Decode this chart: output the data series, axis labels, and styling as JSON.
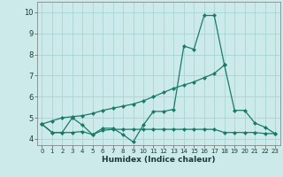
{
  "xlabel": "Humidex (Indice chaleur)",
  "bg_color": "#cceaea",
  "grid_color": "#aad4d4",
  "line_color": "#1a7a6a",
  "xlim": [
    -0.5,
    23.5
  ],
  "ylim": [
    3.7,
    10.5
  ],
  "xticks": [
    0,
    1,
    2,
    3,
    4,
    5,
    6,
    7,
    8,
    9,
    10,
    11,
    12,
    13,
    14,
    15,
    16,
    17,
    18,
    19,
    20,
    21,
    22,
    23
  ],
  "yticks": [
    4,
    5,
    6,
    7,
    8,
    9,
    10
  ],
  "line1_x": [
    0,
    1,
    2,
    3,
    4,
    5,
    6,
    7,
    8,
    9,
    10,
    11,
    12,
    13,
    14,
    15,
    16,
    17,
    18,
    19,
    20,
    21,
    22,
    23
  ],
  "line1_y": [
    4.7,
    4.3,
    4.3,
    5.0,
    4.65,
    4.2,
    4.5,
    4.5,
    4.2,
    3.85,
    4.65,
    5.3,
    5.3,
    5.4,
    8.4,
    8.25,
    9.85,
    9.85,
    7.5,
    5.35,
    5.35,
    4.75,
    4.55,
    4.25
  ],
  "line2_x": [
    0,
    1,
    2,
    3,
    4,
    5,
    6,
    7,
    8,
    9,
    10,
    11,
    12,
    13,
    14,
    15,
    16,
    17,
    18
  ],
  "line2_y": [
    4.7,
    4.85,
    5.0,
    5.05,
    5.1,
    5.2,
    5.35,
    5.45,
    5.55,
    5.65,
    5.8,
    6.0,
    6.2,
    6.4,
    6.55,
    6.7,
    6.9,
    7.1,
    7.5
  ],
  "line3_x": [
    0,
    1,
    2,
    3,
    4,
    5,
    6,
    7,
    8,
    9,
    10,
    11,
    12,
    13,
    14,
    15,
    16,
    17,
    18,
    19,
    20,
    21,
    22,
    23
  ],
  "line3_y": [
    4.7,
    4.3,
    4.3,
    4.3,
    4.35,
    4.2,
    4.4,
    4.45,
    4.45,
    4.45,
    4.45,
    4.45,
    4.45,
    4.45,
    4.45,
    4.45,
    4.45,
    4.45,
    4.3,
    4.3,
    4.3,
    4.3,
    4.25,
    4.25
  ],
  "marker_size": 2.5
}
